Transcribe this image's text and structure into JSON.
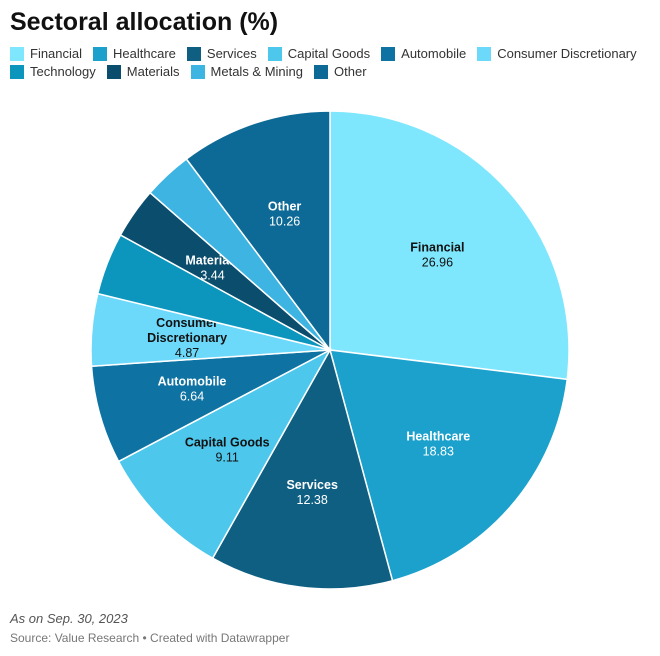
{
  "title": "Sectoral allocation (%)",
  "note": "As on Sep. 30, 2023",
  "source": "Source: Value Research • Created with Datawrapper",
  "chart_data": {
    "type": "pie",
    "title": "Sectoral allocation (%)",
    "categories": [
      "Financial",
      "Healthcare",
      "Services",
      "Capital Goods",
      "Automobile",
      "Consumer Discretionary",
      "Technology",
      "Materials",
      "Metals & Mining",
      "Other"
    ],
    "values": [
      26.96,
      18.83,
      12.38,
      9.11,
      6.64,
      4.87,
      4.2,
      3.44,
      3.31,
      10.26
    ],
    "value_labels": [
      "26.96",
      "18.83",
      "12.38",
      "9.11",
      "6.64",
      "4.87",
      "",
      "3.44",
      "",
      "10.26"
    ],
    "slice_labels": [
      "Financial",
      "Healthcare",
      "Services",
      "Capital Goods",
      "Automobile",
      "Consumer Discretionary",
      "",
      "Materials",
      "",
      "Other"
    ],
    "colors": [
      "#7fe7fd",
      "#1ba1cc",
      "#0e5f82",
      "#4dc7ec",
      "#0e73a2",
      "#6cd9fb",
      "#0d96bd",
      "#0a4d6d",
      "#3db4e2",
      "#0d6a96"
    ],
    "legend_placement": "top-left"
  }
}
